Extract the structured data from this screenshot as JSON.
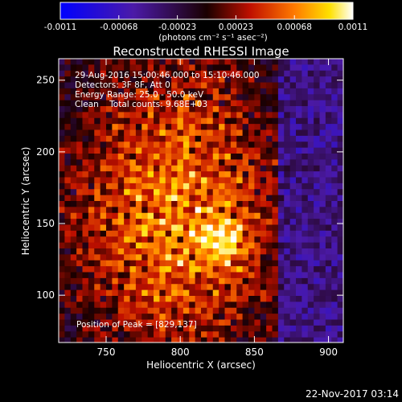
{
  "chart_data": {
    "type": "heatmap",
    "title": "Reconstructed RHESSI Image",
    "xlabel": "Heliocentric X (arcsec)",
    "ylabel": "Heliocentric Y (arcsec)",
    "xlim": [
      718,
      910
    ],
    "ylim": [
      67,
      265
    ],
    "xticks": [
      750,
      800,
      850,
      900
    ],
    "yticks": [
      100,
      150,
      200,
      250
    ],
    "colorbar": {
      "label": "(photons cm⁻² s⁻¹ asec⁻²)",
      "ticks": [
        "-0.0011",
        "-0.00068",
        "-0.00023",
        "0.00023",
        "0.00068",
        "0.0011"
      ],
      "range": [
        -0.0011,
        0.0011
      ]
    },
    "annotations": [
      "29-Aug-2016 15:00:46.000 to 15:10:46.000",
      "Detectors: 3F 8F, Att 0",
      "Energy Range: 25.0 - 50.0 keV",
      "Clean    Total counts: 9.68E+03"
    ],
    "peak_text": "Position of Peak = [829,137]",
    "peak": {
      "x": 829,
      "y": 137
    }
  },
  "footer": {
    "timestamp": "22-Nov-2017 03:14"
  }
}
